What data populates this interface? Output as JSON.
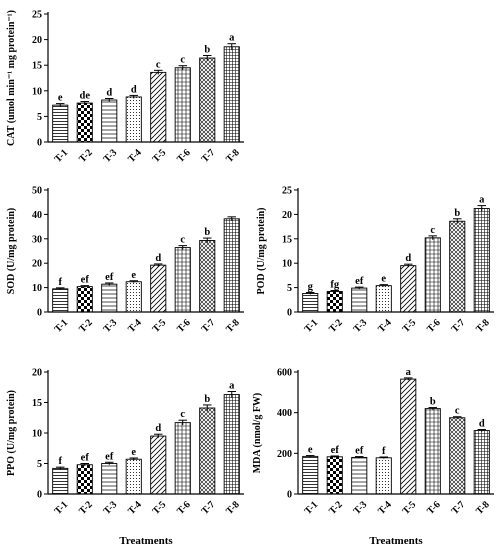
{
  "chart_data": [
    {
      "type": "bar",
      "ylabel": "CAT (umol min⁻¹ mg protein⁻¹)",
      "xlabel": "",
      "categories": [
        "T-1",
        "T-2",
        "T-3",
        "T-4",
        "T-5",
        "T-6",
        "T-7",
        "T-8"
      ],
      "values": [
        7.2,
        7.6,
        8.2,
        8.8,
        13.6,
        14.5,
        16.4,
        18.6
      ],
      "errors": [
        0.3,
        0.3,
        0.3,
        0.3,
        0.4,
        0.4,
        0.5,
        0.6
      ],
      "letters": [
        "e",
        "de",
        "d",
        "d",
        "c",
        "c",
        "b",
        "a"
      ],
      "ylim": [
        0,
        25
      ],
      "yticks": [
        0,
        5,
        10,
        15,
        20,
        25
      ]
    },
    {
      "type": "bar",
      "ylabel": "SOD (U/mg protein)",
      "xlabel": "",
      "categories": [
        "T-1",
        "T-2",
        "T-3",
        "T-4",
        "T-5",
        "T-6",
        "T-7",
        "T-8"
      ],
      "values": [
        9.5,
        10.4,
        11.4,
        12.4,
        19.2,
        26.4,
        29.3,
        38.2
      ],
      "errors": [
        0.4,
        0.4,
        0.5,
        0.4,
        0.5,
        0.8,
        1.0,
        0.8
      ],
      "letters": [
        "f",
        "ef",
        "ef",
        "e",
        "d",
        "c",
        "b",
        ""
      ],
      "ylim": [
        0,
        50
      ],
      "yticks": [
        0,
        10,
        20,
        30,
        40,
        50
      ]
    },
    {
      "type": "bar",
      "ylabel": "POD (U/mg protein)",
      "xlabel": "",
      "categories": [
        "T-1",
        "T-2",
        "T-3",
        "T-4",
        "T-5",
        "T-6",
        "T-7",
        "T-8"
      ],
      "values": [
        3.8,
        4.2,
        4.9,
        5.4,
        9.5,
        15.2,
        18.6,
        21.2
      ],
      "errors": [
        0.2,
        0.2,
        0.2,
        0.2,
        0.3,
        0.4,
        0.5,
        0.6
      ],
      "letters": [
        "g",
        "fg",
        "ef",
        "e",
        "d",
        "c",
        "b",
        "a"
      ],
      "ylim": [
        0,
        25
      ],
      "yticks": [
        0,
        5,
        10,
        15,
        20,
        25
      ]
    },
    {
      "type": "bar",
      "ylabel": "PPO (U/mg protein)",
      "xlabel": "Treatments",
      "categories": [
        "T-1",
        "T-2",
        "T-3",
        "T-4",
        "T-5",
        "T-6",
        "T-7",
        "T-8"
      ],
      "values": [
        4.2,
        4.8,
        5.0,
        5.7,
        9.5,
        11.7,
        14.1,
        16.3
      ],
      "errors": [
        0.2,
        0.2,
        0.2,
        0.2,
        0.3,
        0.4,
        0.5,
        0.5
      ],
      "letters": [
        "f",
        "ef",
        "ef",
        "e",
        "d",
        "c",
        "b",
        "a"
      ],
      "ylim": [
        0,
        20
      ],
      "yticks": [
        0,
        5,
        10,
        15,
        20
      ]
    },
    {
      "type": "bar",
      "ylabel": "MDA (nmol/g FW)",
      "xlabel": "Treatments",
      "categories": [
        "T-1",
        "T-2",
        "T-3",
        "T-4",
        "T-5",
        "T-6",
        "T-7",
        "T-8"
      ],
      "values": [
        185,
        183,
        180,
        178,
        565,
        420,
        375,
        312
      ],
      "errors": [
        4,
        4,
        4,
        4,
        6,
        5,
        5,
        5
      ],
      "letters": [
        "e",
        "ef",
        "ef",
        "f",
        "a",
        "b",
        "c",
        "d"
      ],
      "ylim": [
        0,
        600
      ],
      "yticks": [
        0,
        200,
        400,
        600
      ]
    }
  ],
  "colors": {
    "bar_fill": "#ffffff",
    "bar_stroke": "#000000"
  }
}
